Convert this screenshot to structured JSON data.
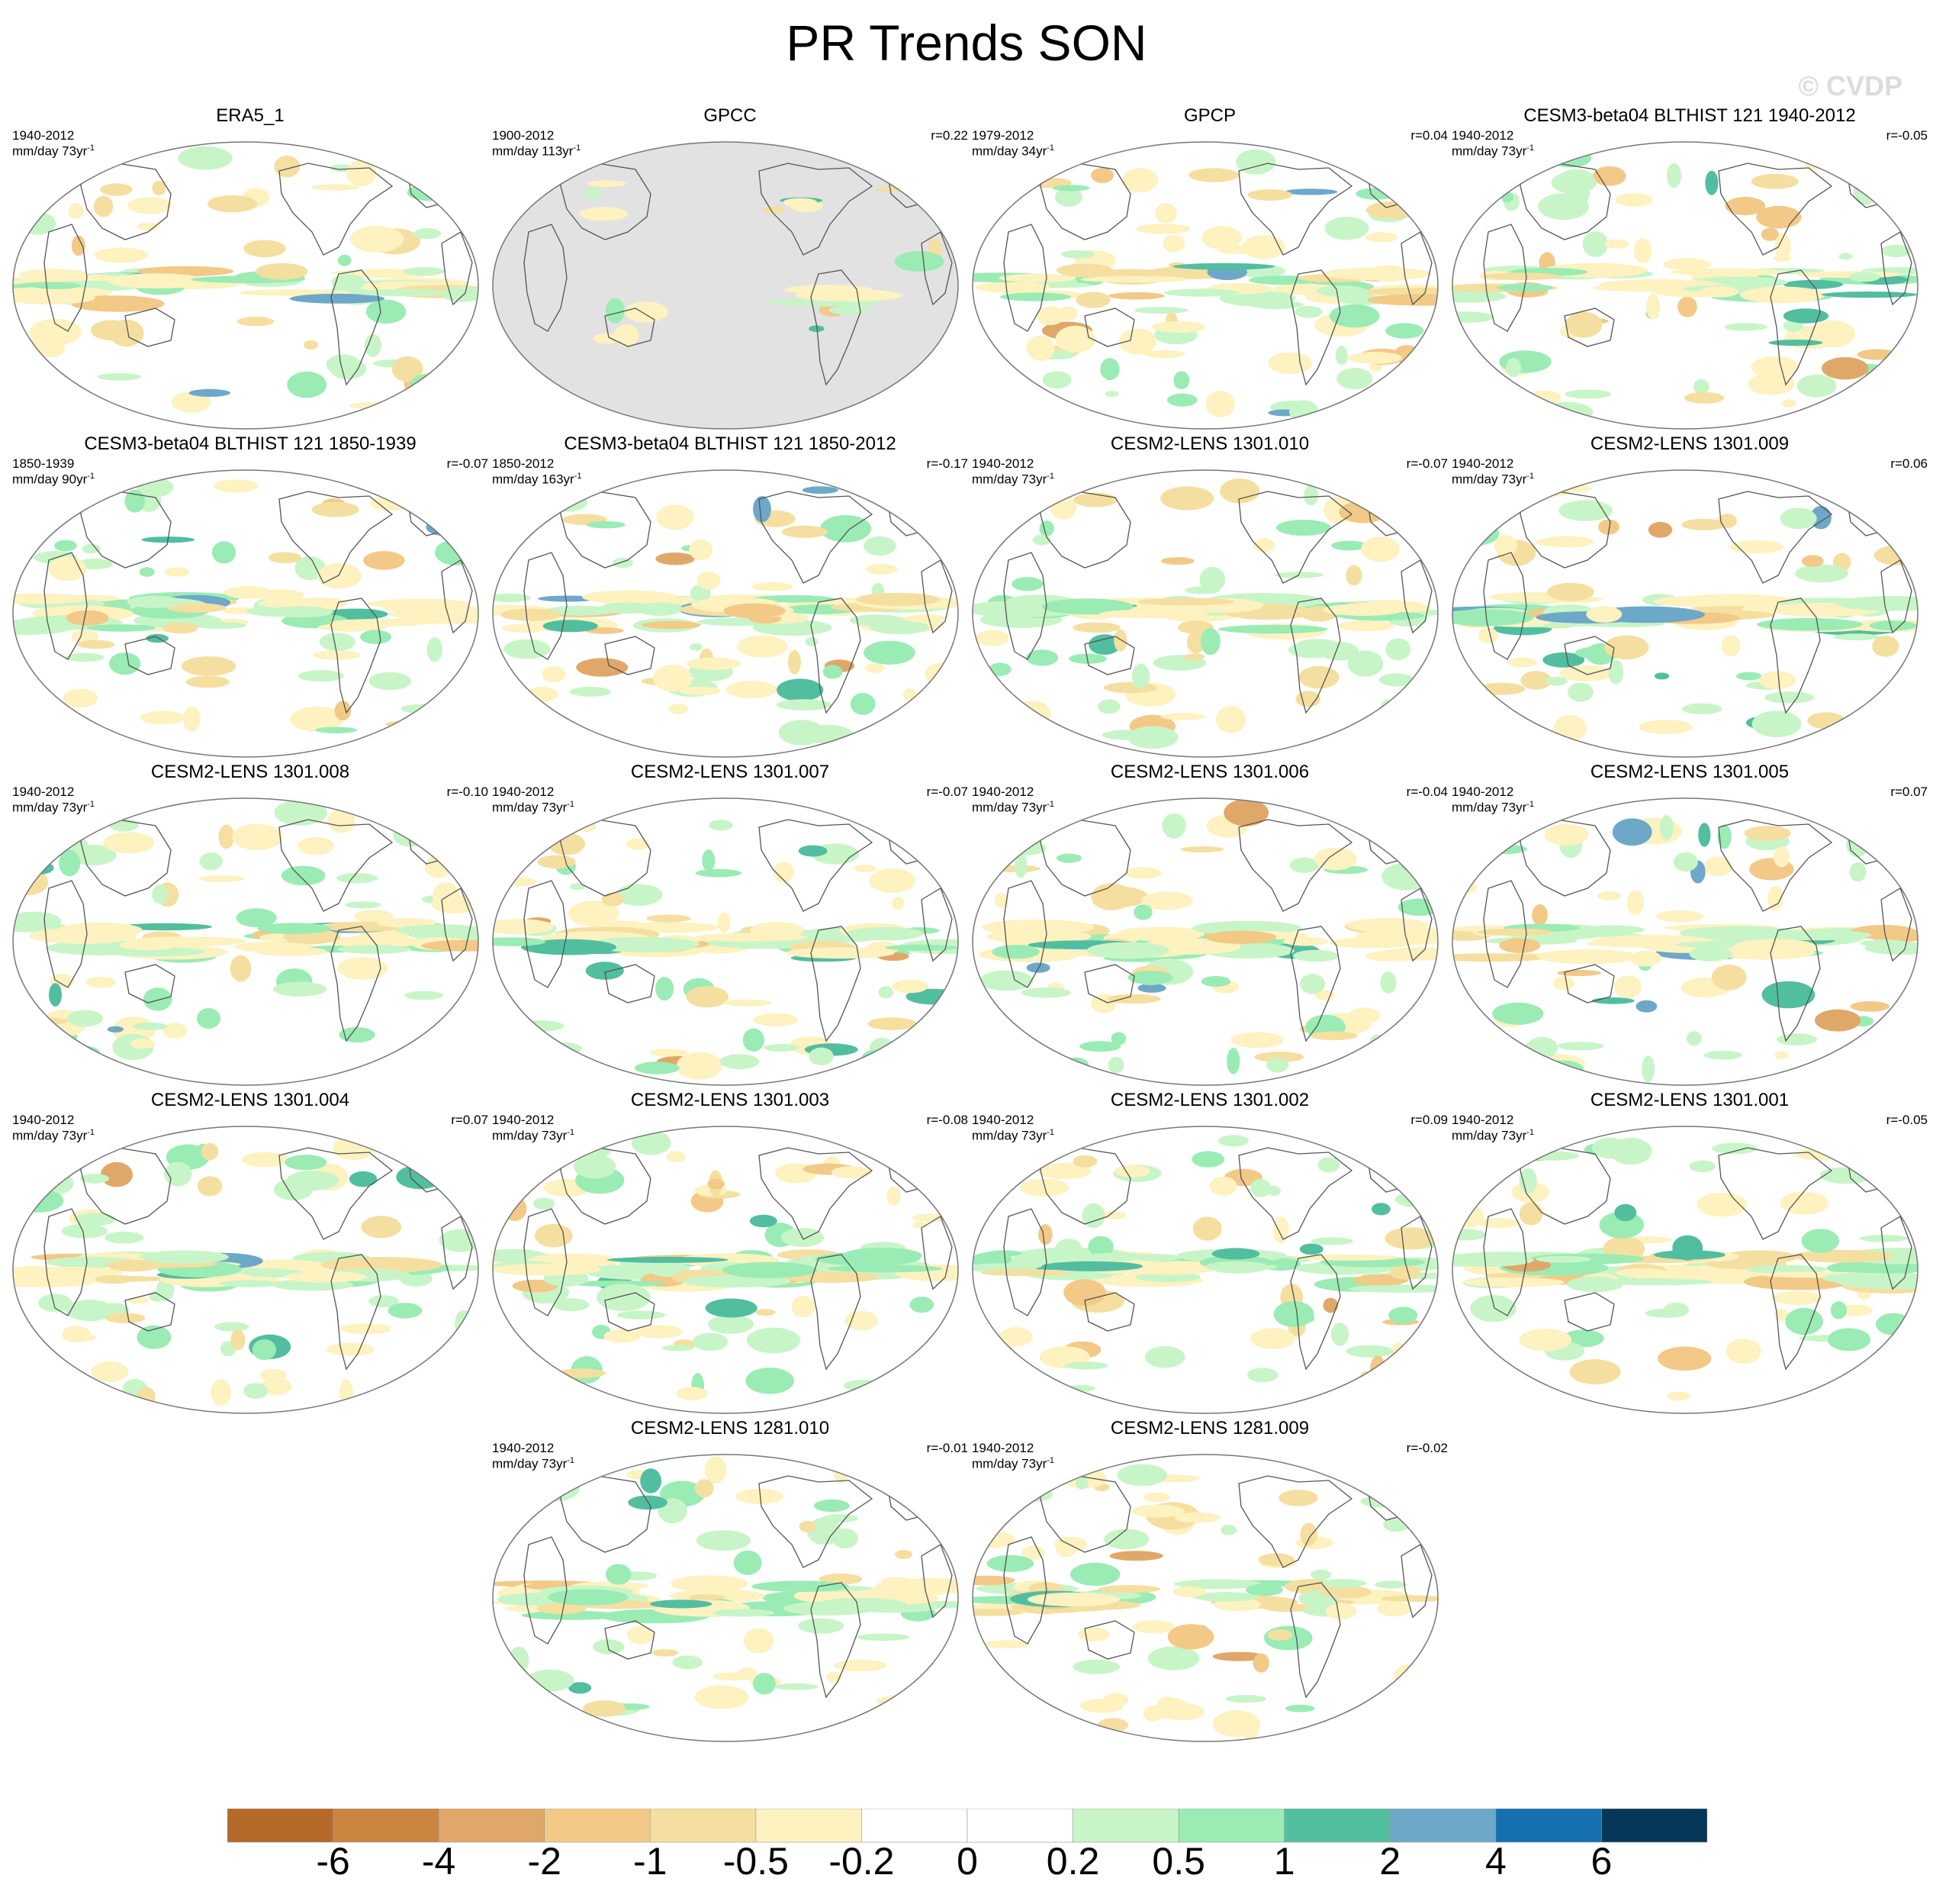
{
  "title": "PR Trends SON",
  "watermark": "© CVDP",
  "panels": [
    {
      "title": "ERA5_1",
      "years": "1940-2012",
      "units": "mm/day 73yr",
      "corr": "",
      "background": "data"
    },
    {
      "title": "GPCC",
      "years": "1900-2012",
      "units": "mm/day 113yr",
      "corr": "r=0.22",
      "background": "land-only"
    },
    {
      "title": "GPCP",
      "years": "1979-2012",
      "units": "mm/day 34yr",
      "corr": "r=0.04",
      "background": "data"
    },
    {
      "title": "CESM3-beta04 BLTHIST 121 1940-2012",
      "years": "1940-2012",
      "units": "mm/day 73yr",
      "corr": "r=-0.05",
      "background": "data"
    },
    {
      "title": "CESM3-beta04 BLTHIST 121 1850-1939",
      "years": "1850-1939",
      "units": "mm/day 90yr",
      "corr": "r=-0.07",
      "background": "data"
    },
    {
      "title": "CESM3-beta04 BLTHIST 121 1850-2012",
      "years": "1850-2012",
      "units": "mm/day 163yr",
      "corr": "r=-0.17",
      "background": "data"
    },
    {
      "title": "CESM2-LENS 1301.010",
      "years": "1940-2012",
      "units": "mm/day 73yr",
      "corr": "r=-0.07",
      "background": "data"
    },
    {
      "title": "CESM2-LENS 1301.009",
      "years": "1940-2012",
      "units": "mm/day 73yr",
      "corr": "r=0.06",
      "background": "data"
    },
    {
      "title": "CESM2-LENS 1301.008",
      "years": "1940-2012",
      "units": "mm/day 73yr",
      "corr": "r=-0.10",
      "background": "data"
    },
    {
      "title": "CESM2-LENS 1301.007",
      "years": "1940-2012",
      "units": "mm/day 73yr",
      "corr": "r=-0.07",
      "background": "data"
    },
    {
      "title": "CESM2-LENS 1301.006",
      "years": "1940-2012",
      "units": "mm/day 73yr",
      "corr": "r=-0.04",
      "background": "data"
    },
    {
      "title": "CESM2-LENS 1301.005",
      "years": "1940-2012",
      "units": "mm/day 73yr",
      "corr": "r=0.07",
      "background": "data"
    },
    {
      "title": "CESM2-LENS 1301.004",
      "years": "1940-2012",
      "units": "mm/day 73yr",
      "corr": "r=0.07",
      "background": "data"
    },
    {
      "title": "CESM2-LENS 1301.003",
      "years": "1940-2012",
      "units": "mm/day 73yr",
      "corr": "r=-0.08",
      "background": "data"
    },
    {
      "title": "CESM2-LENS 1301.002",
      "years": "1940-2012",
      "units": "mm/day 73yr",
      "corr": "r=0.09",
      "background": "data"
    },
    {
      "title": "CESM2-LENS 1301.001",
      "years": "1940-2012",
      "units": "mm/day 73yr",
      "corr": "r=-0.05",
      "background": "data"
    },
    {
      "title": "CESM2-LENS 1281.010",
      "years": "1940-2012",
      "units": "mm/day 73yr",
      "corr": "r=-0.01",
      "background": "data"
    },
    {
      "title": "CESM2-LENS 1281.009",
      "years": "1940-2012",
      "units": "mm/day 73yr",
      "corr": "r=-0.02",
      "background": "data"
    }
  ],
  "colorbar": {
    "labels": [
      "-6",
      "-4",
      "-2",
      "-1",
      "-0.5",
      "-0.2",
      "0",
      "0.2",
      "0.5",
      "1",
      "2",
      "4",
      "6"
    ],
    "colors": [
      "#b5692a",
      "#cc8540",
      "#e0a868",
      "#f2c987",
      "#f5dfa0",
      "#fdf2c0",
      "#ffffff",
      "#ffffff",
      "#c8f5c8",
      "#9aecb4",
      "#52bea0",
      "#6ea8c8",
      "#1670b0",
      "#053858"
    ]
  }
}
